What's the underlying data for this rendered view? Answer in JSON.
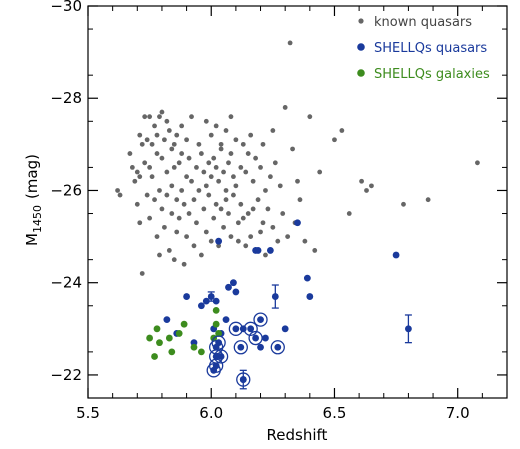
{
  "chart_data": {
    "type": "scatter",
    "xlabel": "Redshift",
    "ylabel_main": "M",
    "ylabel_sub": "1450",
    "ylabel_unit": "(mag)",
    "xlim": [
      5.5,
      7.2
    ],
    "ylim": [
      -21.5,
      -30
    ],
    "x_ticks": [
      5.5,
      6.0,
      6.5,
      7.0
    ],
    "x_tick_labels": [
      "5.5",
      "6.0",
      "6.5",
      "7.0"
    ],
    "y_ticks": [
      -22,
      -24,
      -26,
      -28,
      -30
    ],
    "y_tick_labels": [
      "−22",
      "−24",
      "−26",
      "−28",
      "−30"
    ],
    "legend_position": "top-right",
    "series": [
      {
        "name": "known quasars",
        "color": "#666666",
        "marker": "small-dot",
        "points": [
          [
            5.62,
            -26.0
          ],
          [
            5.63,
            -25.9
          ],
          [
            5.67,
            -26.8
          ],
          [
            5.68,
            -26.5
          ],
          [
            5.69,
            -26.2
          ],
          [
            5.7,
            -26.4
          ],
          [
            5.7,
            -25.7
          ],
          [
            5.71,
            -27.2
          ],
          [
            5.71,
            -26.3
          ],
          [
            5.71,
            -25.3
          ],
          [
            5.72,
            -27.0
          ],
          [
            5.72,
            -24.2
          ],
          [
            5.73,
            -27.6
          ],
          [
            5.73,
            -26.6
          ],
          [
            5.74,
            -27.1
          ],
          [
            5.74,
            -25.9
          ],
          [
            5.75,
            -27.6
          ],
          [
            5.75,
            -26.5
          ],
          [
            5.75,
            -25.4
          ],
          [
            5.76,
            -27.0
          ],
          [
            5.76,
            -26.3
          ],
          [
            5.77,
            -27.4
          ],
          [
            5.77,
            -25.8
          ],
          [
            5.78,
            -27.2
          ],
          [
            5.78,
            -26.8
          ],
          [
            5.78,
            -25.0
          ],
          [
            5.79,
            -27.6
          ],
          [
            5.79,
            -26.0
          ],
          [
            5.79,
            -24.6
          ],
          [
            5.8,
            -27.7
          ],
          [
            5.8,
            -26.7
          ],
          [
            5.8,
            -25.6
          ],
          [
            5.81,
            -27.1
          ],
          [
            5.81,
            -25.2
          ],
          [
            5.82,
            -27.5
          ],
          [
            5.82,
            -26.4
          ],
          [
            5.82,
            -25.9
          ],
          [
            5.83,
            -27.3
          ],
          [
            5.83,
            -24.7
          ],
          [
            5.84,
            -26.9
          ],
          [
            5.84,
            -26.1
          ],
          [
            5.84,
            -25.5
          ],
          [
            5.85,
            -27.0
          ],
          [
            5.85,
            -26.5
          ],
          [
            5.85,
            -24.5
          ],
          [
            5.86,
            -27.2
          ],
          [
            5.86,
            -25.8
          ],
          [
            5.86,
            -25.1
          ],
          [
            5.87,
            -26.6
          ],
          [
            5.87,
            -25.4
          ],
          [
            5.88,
            -27.4
          ],
          [
            5.88,
            -26.8
          ],
          [
            5.88,
            -26.0
          ],
          [
            5.89,
            -25.7
          ],
          [
            5.89,
            -24.4
          ],
          [
            5.9,
            -27.1
          ],
          [
            5.9,
            -26.3
          ],
          [
            5.9,
            -25.0
          ],
          [
            5.91,
            -26.7
          ],
          [
            5.91,
            -25.5
          ],
          [
            5.92,
            -27.6
          ],
          [
            5.92,
            -26.2
          ],
          [
            5.93,
            -25.8
          ],
          [
            5.93,
            -24.8
          ],
          [
            5.94,
            -26.5
          ],
          [
            5.94,
            -25.3
          ],
          [
            5.95,
            -27.0
          ],
          [
            5.95,
            -26.0
          ],
          [
            5.96,
            -26.8
          ],
          [
            5.96,
            -24.6
          ],
          [
            5.97,
            -26.4
          ],
          [
            5.97,
            -25.6
          ],
          [
            5.98,
            -27.5
          ],
          [
            5.98,
            -26.1
          ],
          [
            5.98,
            -25.1
          ],
          [
            5.99,
            -26.6
          ],
          [
            5.99,
            -25.9
          ],
          [
            6.0,
            -27.2
          ],
          [
            6.0,
            -26.3
          ],
          [
            6.0,
            -24.9
          ],
          [
            6.01,
            -26.7
          ],
          [
            6.01,
            -25.4
          ],
          [
            6.02,
            -27.4
          ],
          [
            6.02,
            -26.5
          ],
          [
            6.02,
            -25.7
          ],
          [
            6.03,
            -26.2
          ],
          [
            6.03,
            -24.8
          ],
          [
            6.04,
            -27.0
          ],
          [
            6.04,
            -26.9
          ],
          [
            6.04,
            -25.6
          ],
          [
            6.05,
            -26.4
          ],
          [
            6.05,
            -25.2
          ],
          [
            6.06,
            -27.3
          ],
          [
            6.06,
            -26.0
          ],
          [
            6.06,
            -25.8
          ],
          [
            6.07,
            -26.6
          ],
          [
            6.07,
            -25.5
          ],
          [
            6.08,
            -27.6
          ],
          [
            6.08,
            -26.8
          ],
          [
            6.08,
            -25.0
          ],
          [
            6.09,
            -26.3
          ],
          [
            6.09,
            -25.9
          ],
          [
            6.1,
            -27.1
          ],
          [
            6.1,
            -26.1
          ],
          [
            6.11,
            -25.3
          ],
          [
            6.11,
            -24.9
          ],
          [
            6.12,
            -26.5
          ],
          [
            6.12,
            -25.7
          ],
          [
            6.13,
            -27.0
          ],
          [
            6.13,
            -25.4
          ],
          [
            6.14,
            -26.4
          ],
          [
            6.14,
            -24.8
          ],
          [
            6.15,
            -26.8
          ],
          [
            6.15,
            -25.5
          ],
          [
            6.16,
            -27.2
          ],
          [
            6.16,
            -25.0
          ],
          [
            6.17,
            -26.2
          ],
          [
            6.17,
            -25.6
          ],
          [
            6.18,
            -26.7
          ],
          [
            6.18,
            -24.7
          ],
          [
            6.19,
            -25.8
          ],
          [
            6.2,
            -26.5
          ],
          [
            6.2,
            -25.1
          ],
          [
            6.21,
            -27.0
          ],
          [
            6.21,
            -25.3
          ],
          [
            6.22,
            -26.0
          ],
          [
            6.22,
            -24.6
          ],
          [
            6.23,
            -25.6
          ],
          [
            6.24,
            -26.3
          ],
          [
            6.25,
            -27.3
          ],
          [
            6.25,
            -25.2
          ],
          [
            6.26,
            -26.6
          ],
          [
            6.27,
            -24.9
          ],
          [
            6.28,
            -26.1
          ],
          [
            6.29,
            -25.5
          ],
          [
            6.3,
            -27.8
          ],
          [
            6.31,
            -25.0
          ],
          [
            6.32,
            -29.2
          ],
          [
            6.33,
            -26.9
          ],
          [
            6.34,
            -25.3
          ],
          [
            6.35,
            -26.2
          ],
          [
            6.36,
            -25.8
          ],
          [
            6.38,
            -24.9
          ],
          [
            6.4,
            -27.6
          ],
          [
            6.42,
            -24.7
          ],
          [
            6.44,
            -26.4
          ],
          [
            6.5,
            -27.1
          ],
          [
            6.53,
            -27.3
          ],
          [
            6.56,
            -25.5
          ],
          [
            6.61,
            -26.2
          ],
          [
            6.63,
            -26.0
          ],
          [
            6.65,
            -26.1
          ],
          [
            6.78,
            -25.7
          ],
          [
            6.88,
            -25.8
          ],
          [
            7.08,
            -26.6
          ]
        ]
      },
      {
        "name": "SHELLQs quasars",
        "color": "#1a3a9c",
        "marker": "dot",
        "points": [
          [
            5.82,
            -23.2
          ],
          [
            5.86,
            -22.9
          ],
          [
            5.9,
            -23.7
          ],
          [
            5.93,
            -22.7
          ],
          [
            5.96,
            -23.5
          ],
          [
            6.01,
            -23.0
          ],
          [
            6.02,
            -23.6
          ],
          [
            6.03,
            -24.9
          ],
          [
            6.04,
            -22.9
          ],
          [
            6.06,
            -23.2
          ],
          [
            6.07,
            -23.9
          ],
          [
            6.09,
            -24.0
          ],
          [
            6.1,
            -23.8
          ],
          [
            6.13,
            -23.0
          ],
          [
            6.18,
            -24.7
          ],
          [
            6.19,
            -24.7
          ],
          [
            6.2,
            -22.6
          ],
          [
            6.22,
            -22.8
          ],
          [
            6.24,
            -24.7
          ],
          [
            6.3,
            -23.0
          ],
          [
            6.35,
            -25.3
          ],
          [
            6.39,
            -24.1
          ],
          [
            6.4,
            -23.7
          ],
          [
            6.75,
            -24.6
          ]
        ]
      },
      {
        "name": "SHELLQs galaxies",
        "color": "#3d8c1e",
        "marker": "dot",
        "points": [
          [
            5.75,
            -22.8
          ],
          [
            5.77,
            -22.4
          ],
          [
            5.78,
            -23.0
          ],
          [
            5.79,
            -22.7
          ],
          [
            5.83,
            -22.8
          ],
          [
            5.84,
            -22.5
          ],
          [
            5.87,
            -22.9
          ],
          [
            5.89,
            -23.1
          ],
          [
            5.93,
            -22.6
          ],
          [
            5.96,
            -22.5
          ],
          [
            6.01,
            -22.8
          ],
          [
            6.02,
            -23.1
          ],
          [
            6.02,
            -23.4
          ],
          [
            6.03,
            -22.9
          ]
        ]
      }
    ],
    "circled_points": [
      [
        6.01,
        -22.1
      ],
      [
        6.02,
        -22.2
      ],
      [
        6.02,
        -22.4
      ],
      [
        6.02,
        -22.6
      ],
      [
        6.03,
        -22.7
      ],
      [
        6.04,
        -22.4
      ],
      [
        6.1,
        -23.0
      ],
      [
        6.12,
        -22.6
      ],
      [
        6.13,
        -21.9
      ],
      [
        6.16,
        -23.0
      ],
      [
        6.18,
        -22.8
      ],
      [
        6.2,
        -23.2
      ],
      [
        6.27,
        -22.6
      ]
    ],
    "circled_color": "#1a3a9c",
    "error_bars": [
      {
        "x": 5.98,
        "y": -23.6,
        "err": 0.0
      },
      {
        "x": 6.0,
        "y": -23.7,
        "err": 0.1
      },
      {
        "x": 6.13,
        "y": -21.9,
        "err": 0.2
      },
      {
        "x": 6.26,
        "y": -23.7,
        "err": 0.25
      },
      {
        "x": 6.8,
        "y": -23.0,
        "err": 0.3
      }
    ]
  }
}
